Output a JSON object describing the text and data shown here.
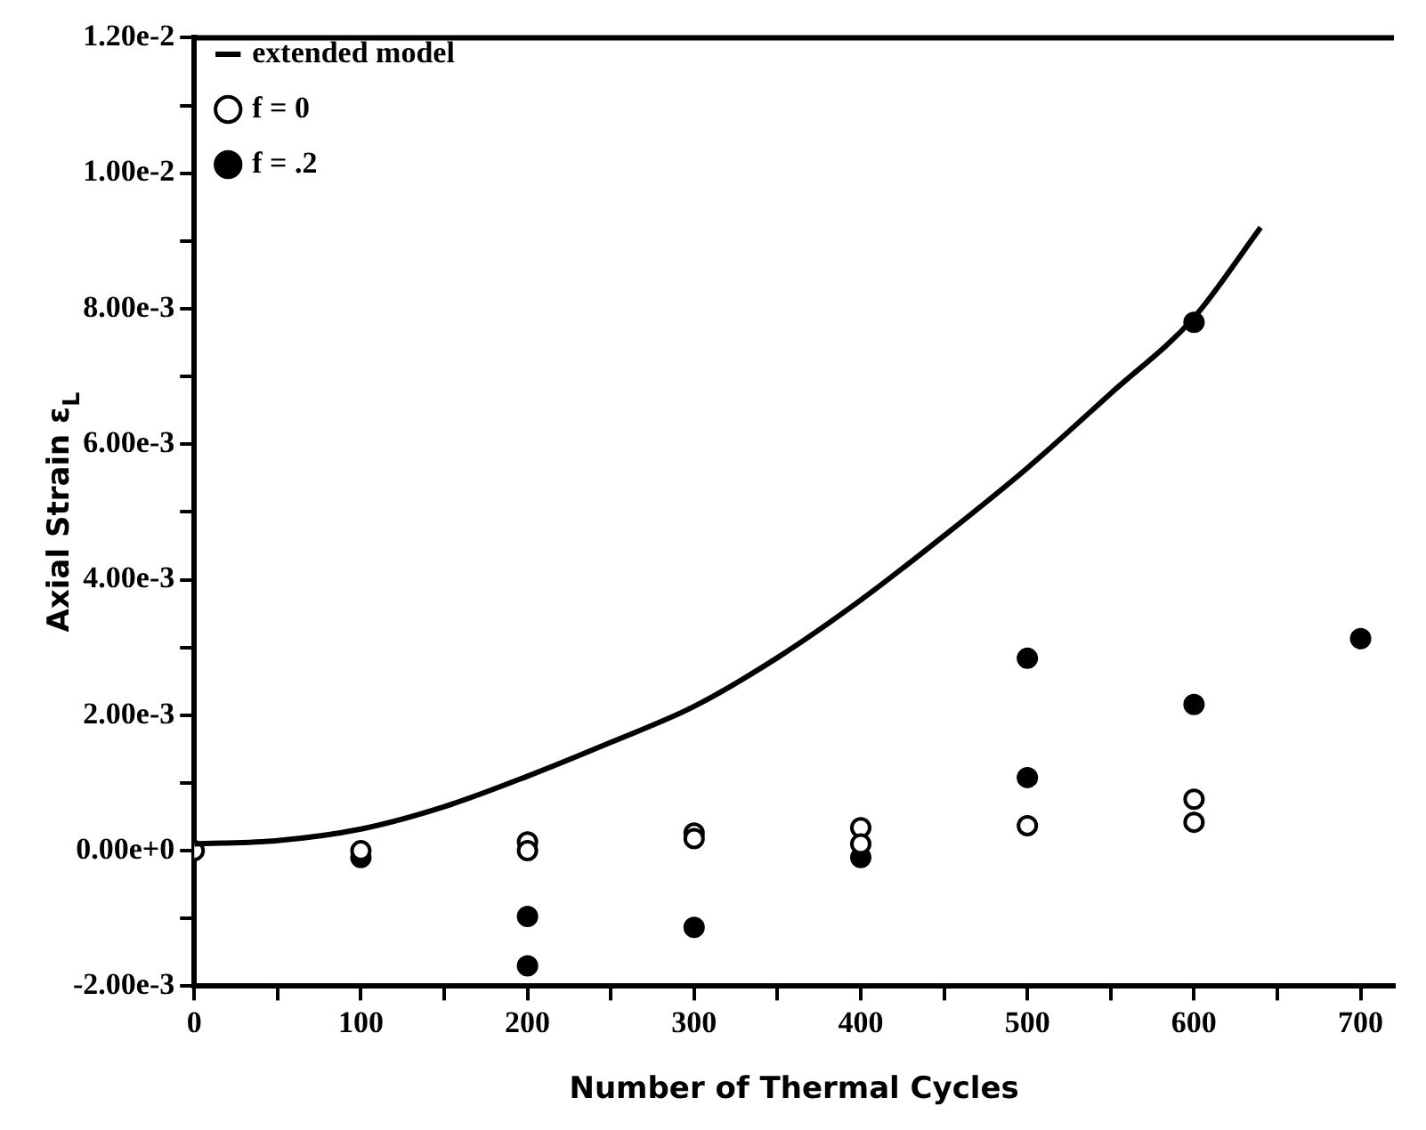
{
  "chart_data": {
    "type": "scatter",
    "xlabel": "Number of Thermal Cycles",
    "ylabel": "Axial Strain ε$_{L}$",
    "xlim": [
      0,
      720
    ],
    "xticks": [
      0,
      {
        "value": 50,
        "label": null
      },
      100,
      {
        "value": 150,
        "label": null
      },
      200,
      {
        "value": 250,
        "label": null
      },
      300,
      {
        "value": 350,
        "label": null
      },
      400,
      {
        "value": 450,
        "label": null
      },
      500,
      {
        "value": 550,
        "label": null
      },
      600,
      {
        "value": 650,
        "label": null
      },
      700
    ],
    "ylim": [
      -0.002,
      0.012
    ],
    "yticks": [
      {
        "value": -0.002,
        "label": "-2.00e-3"
      },
      {
        "value": -0.001,
        "label": null
      },
      {
        "value": 0,
        "label": "0.00e+0"
      },
      {
        "value": 0.001,
        "label": null
      },
      {
        "value": 0.002,
        "label": "2.00e-3"
      },
      {
        "value": 0.003,
        "label": null
      },
      {
        "value": 0.004,
        "label": "4.00e-3"
      },
      {
        "value": 0.005,
        "label": null
      },
      {
        "value": 0.006,
        "label": "6.00e-3"
      },
      {
        "value": 0.007,
        "label": null
      },
      {
        "value": 0.008,
        "label": "8.00e-3"
      },
      {
        "value": 0.009,
        "label": null
      },
      {
        "value": 0.01,
        "label": "1.00e-2"
      },
      {
        "value": 0.011,
        "label": null
      },
      {
        "value": 0.012,
        "label": "1.20e-2"
      }
    ],
    "grid": false,
    "legend": "top left",
    "marker": "circle",
    "series": [
      {
        "name": "extended model",
        "type": "line",
        "color": "#000000",
        "marker": "none",
        "line_style": "solid",
        "x": [
          0,
          50,
          100,
          150,
          200,
          250,
          300,
          350,
          400,
          450,
          500,
          550,
          600,
          640
        ],
        "values": [
          0.0001,
          0.00015,
          0.00032,
          0.00065,
          0.0011,
          0.0016,
          0.00213,
          0.00285,
          0.0037,
          0.00465,
          0.00565,
          0.00675,
          0.00787,
          0.0092
        ]
      },
      {
        "name": "f = 0",
        "type": "scatter",
        "color": "#ffffff",
        "x": [
          0,
          100,
          200,
          200,
          300,
          300,
          400,
          400,
          500,
          600,
          600
        ],
        "values": [
          0,
          0,
          0.00013,
          0,
          0.00026,
          0.00018,
          0.00034,
          0.0001,
          0.00037,
          0.00076,
          0.00042
        ]
      },
      {
        "name": "f = .2",
        "type": "scatter",
        "color": "#000000",
        "x": [
          100,
          200,
          200,
          300,
          400,
          500,
          500,
          600,
          600,
          700
        ],
        "values": [
          -0.0001,
          -0.00097,
          -0.0017,
          -0.00113,
          -0.0001,
          0.00108,
          0.00284,
          0.00216,
          0.0078,
          0.00313
        ]
      }
    ]
  }
}
